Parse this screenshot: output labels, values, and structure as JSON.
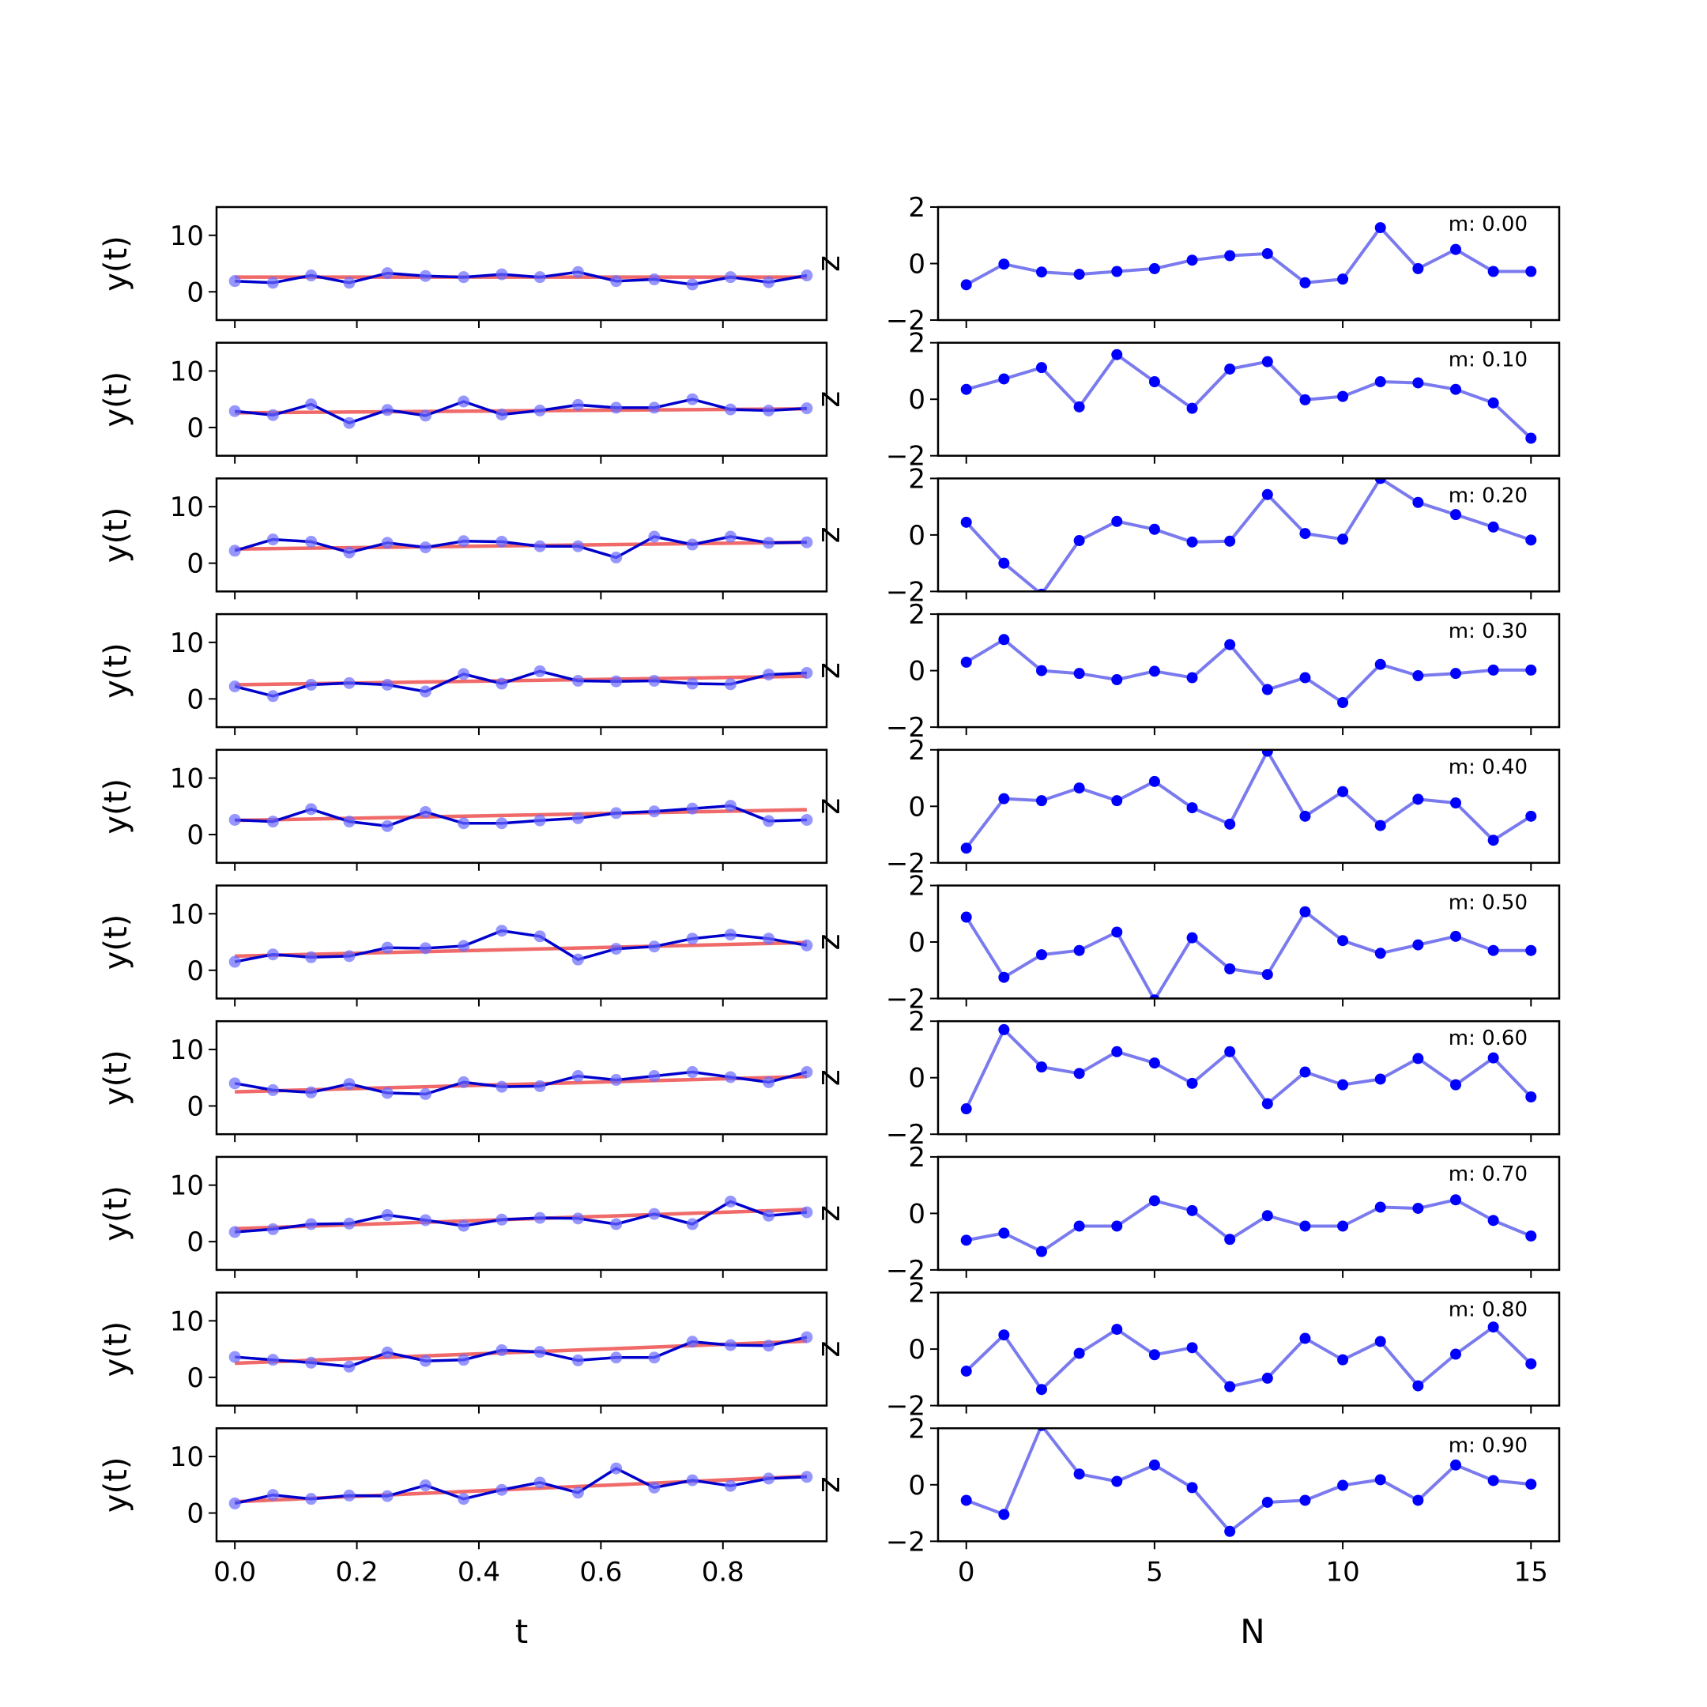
{
  "chart_data": {
    "type": "line",
    "layout": "10 rows x 2 columns of subplots",
    "left_column": {
      "xlabel": "t",
      "ylabel": "y(t)",
      "xlim": [
        -0.03,
        0.97
      ],
      "ylim": [
        -5,
        15
      ],
      "xticks": [
        "0.0",
        "0.2",
        "0.4",
        "0.6",
        "0.8"
      ],
      "xtick_values": [
        0.0,
        0.2,
        0.4,
        0.6,
        0.8
      ],
      "yticks": [
        "0",
        "10"
      ],
      "ytick_values": [
        0,
        10
      ],
      "x": [
        0.0,
        0.0625,
        0.125,
        0.1875,
        0.25,
        0.3125,
        0.375,
        0.4375,
        0.5,
        0.5625,
        0.625,
        0.6875,
        0.75,
        0.8125,
        0.875,
        0.9375
      ],
      "panels": [
        {
          "fit_start": 2.6,
          "fit_end": 2.6,
          "y": [
            1.9,
            1.6,
            2.9,
            1.6,
            3.3,
            2.8,
            2.6,
            3.1,
            2.6,
            3.5,
            1.9,
            2.2,
            1.3,
            2.6,
            1.7,
            2.9
          ]
        },
        {
          "fit_start": 2.6,
          "fit_end": 3.3,
          "y": [
            2.9,
            2.2,
            4.1,
            0.8,
            3.1,
            2.1,
            4.6,
            2.3,
            3.0,
            4.0,
            3.5,
            3.5,
            5.0,
            3.2,
            3.0,
            3.4
          ]
        },
        {
          "fit_start": 2.5,
          "fit_end": 3.7,
          "y": [
            2.2,
            4.2,
            3.8,
            1.9,
            3.6,
            2.8,
            3.9,
            3.8,
            3.0,
            3.0,
            1.0,
            4.7,
            3.3,
            4.7,
            3.6,
            3.7
          ]
        },
        {
          "fit_start": 2.5,
          "fit_end": 4.0,
          "y": [
            2.2,
            0.5,
            2.5,
            2.8,
            2.5,
            1.3,
            4.4,
            2.7,
            4.9,
            3.2,
            3.1,
            3.2,
            2.7,
            2.6,
            4.3,
            4.6
          ]
        },
        {
          "fit_start": 2.5,
          "fit_end": 4.4,
          "y": [
            2.6,
            2.3,
            4.5,
            2.3,
            1.5,
            4.0,
            2.0,
            2.0,
            2.5,
            2.9,
            3.8,
            4.1,
            4.6,
            5.1,
            2.4,
            2.6
          ]
        },
        {
          "fit_start": 2.5,
          "fit_end": 4.9,
          "y": [
            1.5,
            2.8,
            2.3,
            2.5,
            4.0,
            3.9,
            4.3,
            7.0,
            6.0,
            1.9,
            3.8,
            4.2,
            5.6,
            6.3,
            5.6,
            4.4
          ]
        },
        {
          "fit_start": 2.5,
          "fit_end": 5.2,
          "y": [
            4.0,
            2.8,
            2.4,
            3.9,
            2.3,
            2.1,
            4.2,
            3.4,
            3.5,
            5.3,
            4.6,
            5.3,
            6.0,
            5.1,
            4.2,
            6.0
          ]
        },
        {
          "fit_start": 2.3,
          "fit_end": 5.7,
          "y": [
            1.7,
            2.2,
            3.1,
            3.2,
            4.7,
            3.8,
            2.8,
            3.9,
            4.2,
            4.1,
            3.1,
            4.9,
            3.1,
            7.1,
            4.6,
            5.2
          ]
        },
        {
          "fit_start": 2.5,
          "fit_end": 6.4,
          "y": [
            3.6,
            3.1,
            2.6,
            1.9,
            4.4,
            2.9,
            3.1,
            4.8,
            4.5,
            3.0,
            3.5,
            3.5,
            6.3,
            5.7,
            5.6,
            7.1
          ]
        },
        {
          "fit_start": 2.0,
          "fit_end": 6.5,
          "y": [
            1.7,
            3.2,
            2.5,
            3.1,
            3.0,
            4.9,
            2.5,
            4.1,
            5.4,
            3.6,
            7.9,
            4.5,
            5.8,
            4.8,
            6.1,
            6.4
          ]
        }
      ]
    },
    "right_column": {
      "xlabel": "N",
      "ylabel": "z",
      "xlim": [
        -0.75,
        15.75
      ],
      "ylim": [
        -2,
        2
      ],
      "xticks": [
        "0",
        "5",
        "10",
        "15"
      ],
      "xtick_values": [
        0,
        5,
        10,
        15
      ],
      "yticks": [
        "2",
        "0",
        "−2"
      ],
      "ytick_values": [
        2,
        0,
        -2
      ],
      "x": [
        0,
        1,
        2,
        3,
        4,
        5,
        6,
        7,
        8,
        9,
        10,
        11,
        12,
        13,
        14,
        15
      ],
      "panels": [
        {
          "label": "m: 0.00",
          "y": [
            -0.75,
            -0.02,
            -0.3,
            -0.38,
            -0.28,
            -0.18,
            0.12,
            0.28,
            0.35,
            -0.68,
            -0.55,
            1.27,
            -0.18,
            0.5,
            -0.28,
            -0.28
          ]
        },
        {
          "label": "m: 0.10",
          "y": [
            0.35,
            0.72,
            1.12,
            -0.27,
            1.58,
            0.62,
            -0.32,
            1.07,
            1.33,
            -0.02,
            0.1,
            0.62,
            0.58,
            0.35,
            -0.13,
            -1.38
          ]
        },
        {
          "label": "m: 0.20",
          "y": [
            0.45,
            -1.0,
            -2.1,
            -0.2,
            0.48,
            0.2,
            -0.25,
            -0.22,
            1.43,
            0.05,
            -0.15,
            2.0,
            1.15,
            0.72,
            0.28,
            -0.18
          ]
        },
        {
          "label": "m: 0.30",
          "y": [
            0.3,
            1.1,
            0.0,
            -0.1,
            -0.32,
            -0.02,
            -0.25,
            0.92,
            -0.67,
            -0.25,
            -1.13,
            0.22,
            -0.18,
            -0.1,
            0.02,
            0.02
          ]
        },
        {
          "label": "m: 0.40",
          "y": [
            -1.48,
            0.27,
            0.2,
            0.65,
            0.2,
            0.88,
            -0.05,
            -0.63,
            1.95,
            -0.35,
            0.52,
            -0.68,
            0.25,
            0.12,
            -1.2,
            -0.35
          ]
        },
        {
          "label": "m: 0.50",
          "y": [
            0.88,
            -1.25,
            -0.45,
            -0.3,
            0.35,
            -2.05,
            0.15,
            -0.95,
            -1.15,
            1.07,
            0.05,
            -0.4,
            -0.1,
            0.2,
            -0.3,
            -0.3
          ]
        },
        {
          "label": "m: 0.60",
          "y": [
            -1.1,
            1.7,
            0.38,
            0.15,
            0.92,
            0.52,
            -0.2,
            0.92,
            -0.92,
            0.2,
            -0.25,
            -0.05,
            0.68,
            -0.25,
            0.7,
            -0.68
          ]
        },
        {
          "label": "m: 0.70",
          "y": [
            -0.95,
            -0.7,
            -1.35,
            -0.45,
            -0.45,
            0.45,
            0.1,
            -0.92,
            -0.08,
            -0.45,
            -0.45,
            0.22,
            0.18,
            0.48,
            -0.25,
            -0.8
          ]
        },
        {
          "label": "m: 0.80",
          "y": [
            -0.78,
            0.5,
            -1.43,
            -0.15,
            0.7,
            -0.2,
            0.05,
            -1.33,
            -1.03,
            0.38,
            -0.38,
            0.27,
            -1.3,
            -0.18,
            0.78,
            -0.52
          ]
        },
        {
          "label": "m: 0.90",
          "y": [
            -0.55,
            -1.05,
            2.1,
            0.38,
            0.12,
            0.7,
            -0.1,
            -1.65,
            -0.62,
            -0.55,
            -0.02,
            0.18,
            -0.55,
            0.7,
            0.15,
            0.02
          ]
        }
      ]
    },
    "colors": {
      "data_line": "#0000cc",
      "data_points": "#6a6aff",
      "fit_line": "#f06a6a",
      "z_line": "#7a7aef",
      "z_points": "#0000ff",
      "axis": "#000000"
    }
  }
}
